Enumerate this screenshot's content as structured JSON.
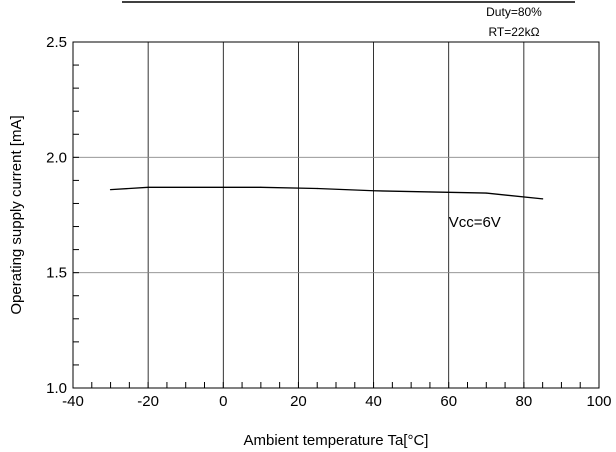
{
  "chart_data": {
    "type": "line",
    "xlabel": "Ambient temperature Ta[°C]",
    "ylabel": "Operating supply current [mA]",
    "xlim": [
      -40,
      100
    ],
    "ylim": [
      1.0,
      2.5
    ],
    "x_ticks": [
      -40,
      -20,
      0,
      20,
      40,
      60,
      80,
      100
    ],
    "y_ticks": [
      "1.0",
      "1.5",
      "2.0",
      "2.5"
    ],
    "grid": true,
    "notes": [
      "Duty=80%",
      "RT=22kΩ"
    ],
    "series": [
      {
        "name": "Vcc=6V",
        "x": [
          -30,
          -20,
          0,
          10,
          25,
          40,
          55,
          70,
          85
        ],
        "y": [
          1.86,
          1.87,
          1.87,
          1.87,
          1.865,
          1.855,
          1.85,
          1.845,
          1.82
        ]
      }
    ]
  }
}
